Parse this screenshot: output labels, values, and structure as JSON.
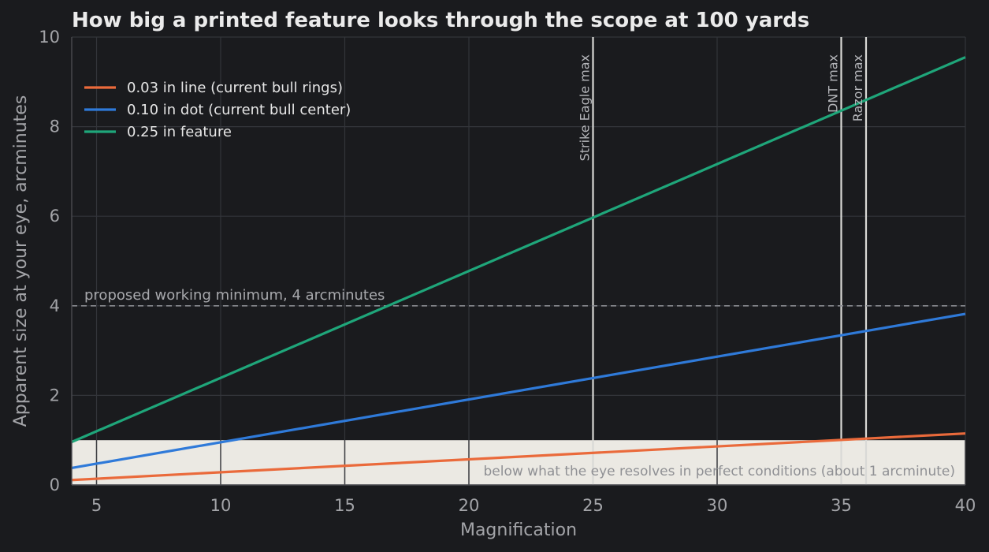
{
  "chart_data": {
    "type": "line",
    "title": "How big a printed feature looks through the scope at 100 yards",
    "xlabel": "Magnification",
    "ylabel": "Apparent size at your eye, arcminutes",
    "xlim": [
      4,
      40
    ],
    "ylim": [
      0,
      10
    ],
    "xticks": [
      5,
      10,
      15,
      20,
      25,
      30,
      35,
      40
    ],
    "yticks": [
      0,
      2,
      4,
      6,
      8,
      10
    ],
    "grid": true,
    "legend_position": "top-left",
    "series": [
      {
        "name": "0.03 in line (current bull rings)",
        "color": "#ea6a3b",
        "x": [
          4,
          40
        ],
        "y": [
          0.11,
          1.15
        ]
      },
      {
        "name": "0.10 in dot (current bull center)",
        "color": "#2f7ad9",
        "x": [
          4,
          40
        ],
        "y": [
          0.38,
          3.82
        ]
      },
      {
        "name": "0.25 in feature",
        "color": "#1fa67a",
        "x": [
          4,
          40
        ],
        "y": [
          0.96,
          9.55
        ]
      }
    ],
    "hlines": [
      {
        "y": 4,
        "label": "proposed working minimum, 4 arcminutes",
        "style": "dashed",
        "color": "#8a8c92"
      }
    ],
    "vlines": [
      {
        "x": 25,
        "label": "Strike Eagle max",
        "color": "#d9d9d6"
      },
      {
        "x": 35,
        "label": "DNT max",
        "color": "#d9d9d6"
      },
      {
        "x": 36,
        "label": "Razor max",
        "color": "#d9d9d6"
      }
    ],
    "bands": [
      {
        "y_from": 0,
        "y_to": 1,
        "label": "below what the eye resolves in perfect conditions (about 1 arcminute)",
        "color": "#ebe9e3"
      }
    ]
  }
}
